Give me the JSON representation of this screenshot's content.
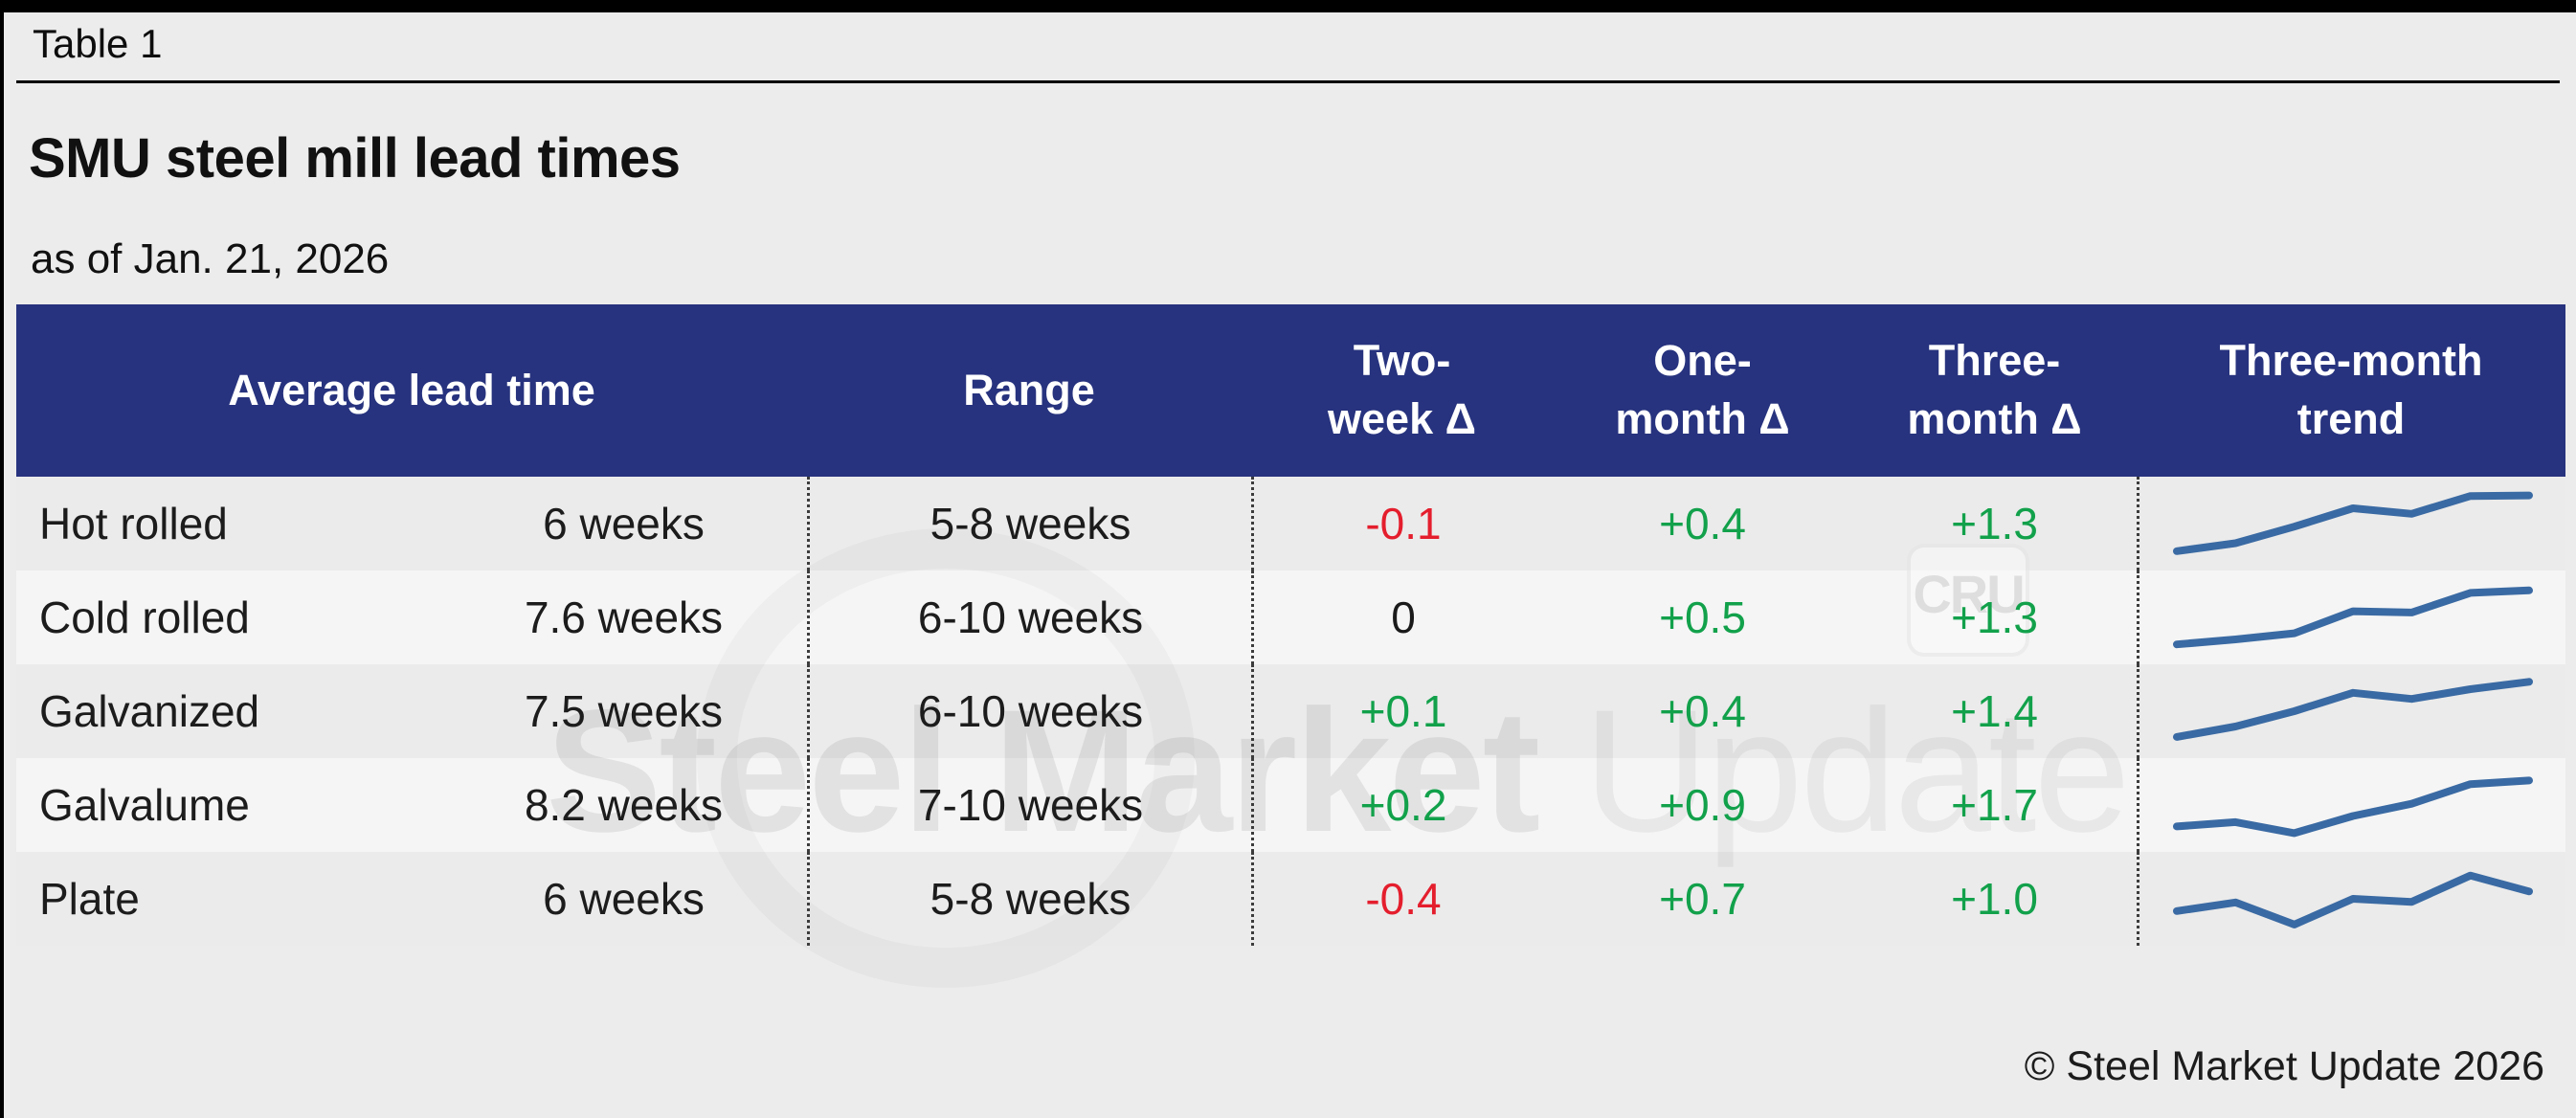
{
  "page": {
    "table_label": "Table 1",
    "title": "SMU steel mill lead times",
    "subtitle": "as of Jan. 21, 2026",
    "footer_copyright": "© Steel Market Update 2026"
  },
  "table_header": {
    "avg": "Average lead time",
    "range": "Range",
    "two_week_l1": "Two-",
    "two_week_l2": "week Δ",
    "one_month_l1": "One-",
    "one_month_l2": "month Δ",
    "three_month_l1": "Three-",
    "three_month_l2": "month Δ",
    "trend_l1": "Three-month",
    "trend_l2": "trend"
  },
  "watermark": {
    "brand_bold": "Steel Market",
    "brand_light": " Update",
    "cru_label": "CRU"
  },
  "colors": {
    "page_bg": "#ececec",
    "header_bg": "#27337e",
    "header_text": "#ffffff",
    "row_odd": "#ebebeb",
    "row_even": "#f5f5f5",
    "positive": "#12a14b",
    "negative": "#e41e2d",
    "neutral": "#1a1a1a",
    "sparkline": "#3a6aa3"
  },
  "chart_data": {
    "type": "table",
    "title": "SMU steel mill lead times",
    "as_of": "Jan. 21, 2026",
    "columns": [
      "Average lead time",
      "Range",
      "Two-week Δ",
      "One-month Δ",
      "Three-month Δ",
      "Three-month trend"
    ],
    "rows": [
      {
        "product": "Hot rolled",
        "average_lead_time": "6 weeks",
        "range": "5-8 weeks",
        "two_week_delta": "-0.1",
        "one_month_delta": "+0.4",
        "three_month_delta": "+1.3",
        "trend_spark": [
          5,
          18,
          45,
          75,
          66,
          95,
          96
        ]
      },
      {
        "product": "Cold rolled",
        "average_lead_time": "7.6 weeks",
        "range": "6-10 weeks",
        "two_week_delta": "0",
        "one_month_delta": "+0.5",
        "three_month_delta": "+1.3",
        "trend_spark": [
          6,
          14,
          24,
          60,
          58,
          90,
          94
        ]
      },
      {
        "product": "Galvanized",
        "average_lead_time": "7.5 weeks",
        "range": "6-10 weeks",
        "two_week_delta": "+0.1",
        "one_month_delta": "+0.4",
        "three_month_delta": "+1.4",
        "trend_spark": [
          8,
          25,
          50,
          80,
          70,
          86,
          98
        ]
      },
      {
        "product": "Galvalume",
        "average_lead_time": "8.2 weeks",
        "range": "7-10 weeks",
        "two_week_delta": "+0.2",
        "one_month_delta": "+0.9",
        "three_month_delta": "+1.7",
        "trend_spark": [
          15,
          22,
          4,
          32,
          52,
          84,
          90
        ]
      },
      {
        "product": "Plate",
        "average_lead_time": "6 weeks",
        "range": "5-8 weeks",
        "two_week_delta": "-0.4",
        "one_month_delta": "+0.7",
        "three_month_delta": "+1.0",
        "trend_spark": [
          30,
          44,
          8,
          50,
          45,
          88,
          62
        ]
      }
    ],
    "sparkline_scale": "relative 0-100, three-month trend"
  }
}
